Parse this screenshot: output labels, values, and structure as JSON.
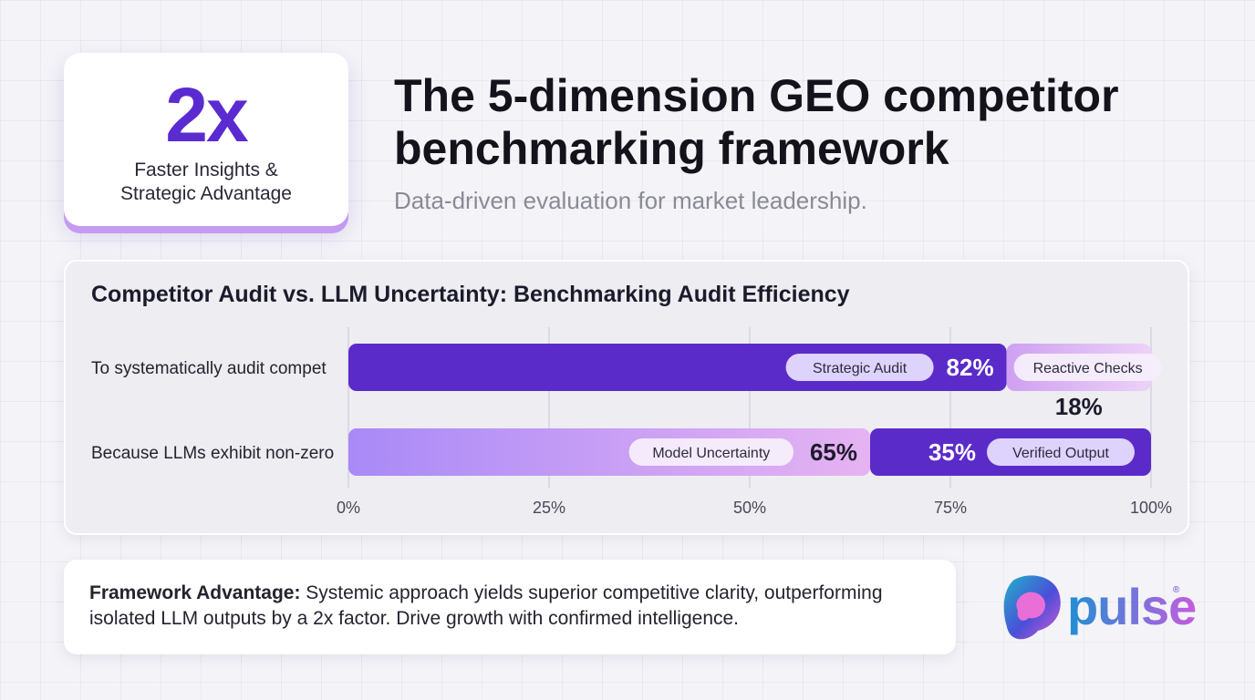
{
  "stat_card": {
    "value": "2x",
    "caption_line1": "Faster Insights &",
    "caption_line2": "Strategic Advantage"
  },
  "header": {
    "title_line1": "The 5-dimension GEO competitor",
    "title_line2": "benchmarking framework",
    "subtitle": "Data-driven evaluation for market leadership."
  },
  "chart_data": {
    "type": "bar",
    "orientation": "horizontal",
    "stacked": true,
    "title": "Competitor Audit vs. LLM Uncertainty: Benchmarking Audit Efficiency",
    "xlim": [
      0,
      100
    ],
    "x_ticks": [
      "0%",
      "25%",
      "50%",
      "75%",
      "100%"
    ],
    "grid": true,
    "categories": [
      "To systematically audit compet",
      "Because LLMs exhibit non-zero"
    ],
    "rows": [
      {
        "category": "To systematically audit compet",
        "segments": [
          {
            "label": "Strategic Audit",
            "value": 82,
            "value_label": "82%",
            "color": "#5b2bc9"
          },
          {
            "label": "Reactive Checks",
            "value": 18,
            "value_label": "18%",
            "color": "#d4a8f0"
          }
        ]
      },
      {
        "category": "Because LLMs exhibit non-zero",
        "segments": [
          {
            "label": "Model Uncertainty",
            "value": 65,
            "value_label": "65%",
            "color": "#b892f5"
          },
          {
            "label": "Verified Output",
            "value": 35,
            "value_label": "35%",
            "color": "#5b2bc9"
          }
        ]
      }
    ]
  },
  "footer": {
    "bold_label": "Framework Advantage:",
    "text": " Systemic approach yields superior competitive clarity, outperforming isolated LLM outputs by a 2x factor. Drive growth with confirmed intelligence."
  },
  "logo": {
    "text": "pulse",
    "reg_mark": "®",
    "icon": "pulse-logo-icon"
  },
  "colors": {
    "accent_purple": "#5b2bc9",
    "light_purple": "#d4a8f0",
    "lavender": "#b892f5",
    "brand_teal": "#1d8fd4",
    "brand_pink": "#c65be0"
  }
}
